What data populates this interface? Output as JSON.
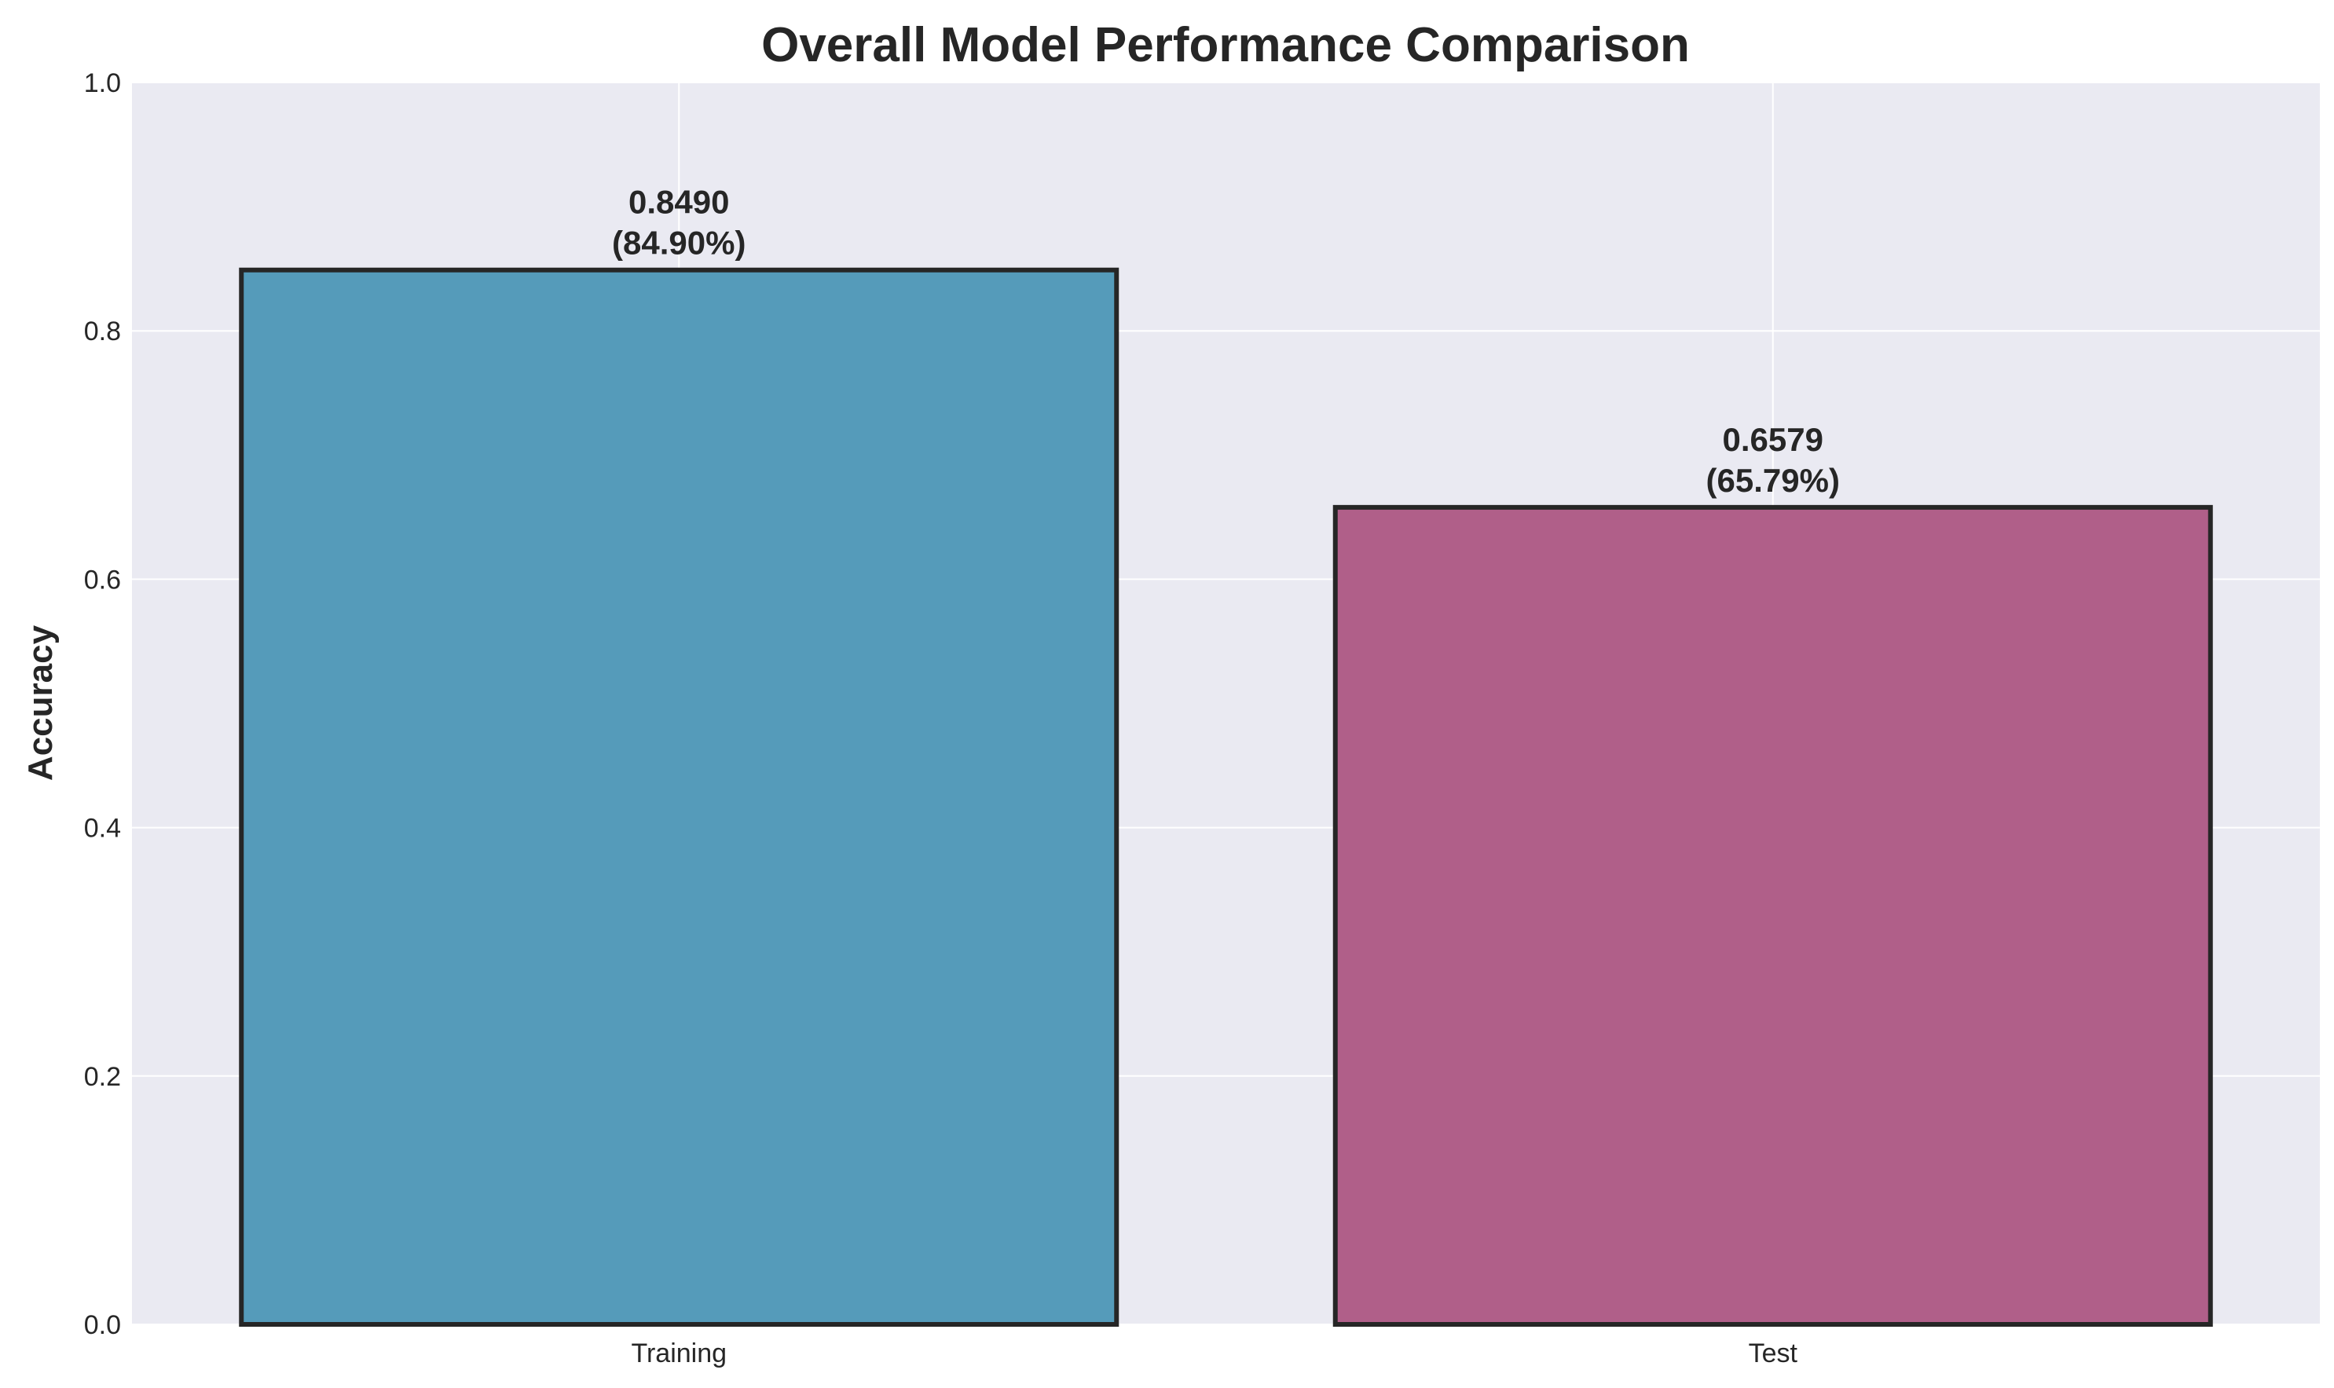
{
  "chart_data": {
    "type": "bar",
    "title": "Overall Model Performance Comparison",
    "xlabel": "",
    "ylabel": "Accuracy",
    "ylim": [
      0,
      1.0
    ],
    "yticks": [
      "0.0",
      "0.2",
      "0.4",
      "0.6",
      "0.8",
      "1.0"
    ],
    "categories": [
      "Training",
      "Test"
    ],
    "values": [
      0.849,
      0.6579
    ],
    "value_labels": [
      "0.8490",
      "0.6579"
    ],
    "percent_labels": [
      "(84.90%)",
      "(65.79%)"
    ],
    "bar_colors": [
      "#559bba",
      "#b05f89"
    ],
    "edge_color": "#262626",
    "grid": true,
    "plot_background": "#eaeaf2"
  }
}
